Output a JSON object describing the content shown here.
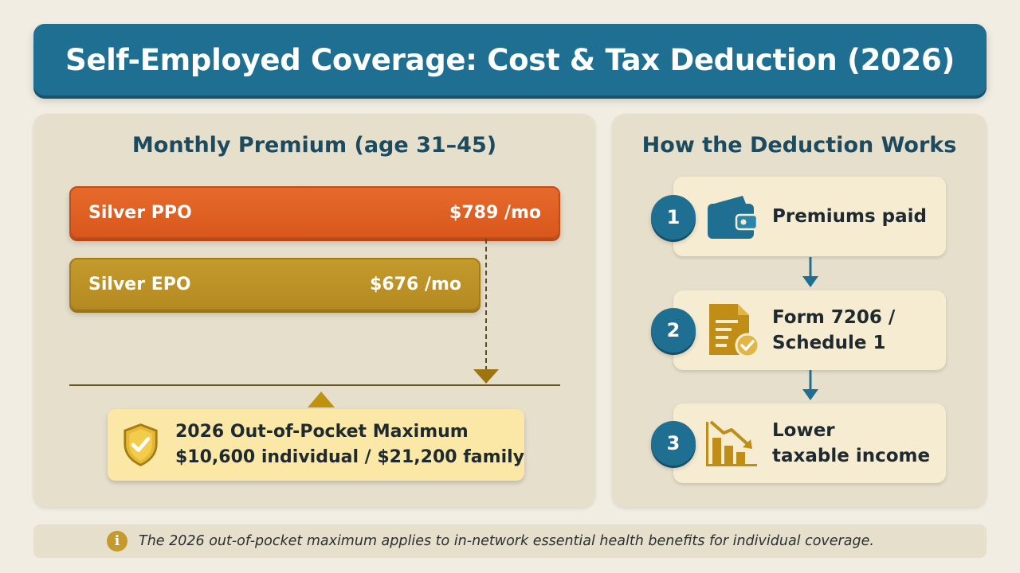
{
  "title": "Self-Employed Coverage: Cost & Tax Deduction (2026)",
  "premium_panel": {
    "title": "Monthly Premium (age 31–45)",
    "plans": [
      {
        "name": "Silver PPO",
        "price": "$789 /mo",
        "value": 789,
        "color": "#e0612a"
      },
      {
        "name": "Silver EPO",
        "price": "$676 /mo",
        "value": 676,
        "color": "#bd9227"
      }
    ],
    "oop": {
      "line1": "2026 Out-of-Pocket Maximum",
      "line2": "$10,600 individual / $21,200 family"
    }
  },
  "deduction_panel": {
    "title": "How the Deduction Works",
    "steps": [
      {
        "number": "1",
        "label_line1": "Premiums paid",
        "label_line2": "",
        "icon": "wallet-icon"
      },
      {
        "number": "2",
        "label_line1": "Form 7206 /",
        "label_line2": "Schedule 1",
        "icon": "document-check-icon"
      },
      {
        "number": "3",
        "label_line1": "Lower",
        "label_line2": "taxable income",
        "icon": "declining-chart-icon"
      }
    ]
  },
  "footnote": {
    "icon": "info-icon",
    "symbol": "i",
    "text": "The 2026 out-of-pocket maximum applies to in-network essential health benefits for individual coverage."
  },
  "colors": {
    "primary": "#1f6f92",
    "orange": "#e0612a",
    "gold": "#bd9227",
    "background": "#f1ede3"
  }
}
